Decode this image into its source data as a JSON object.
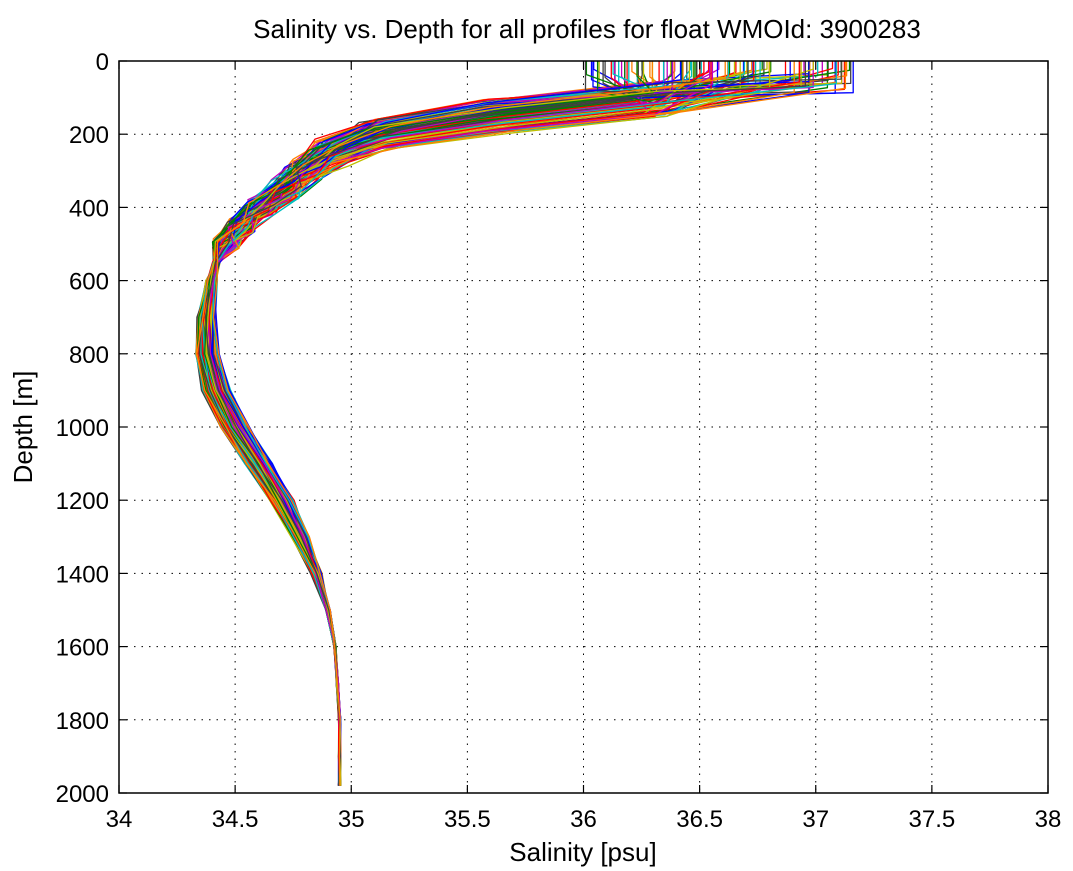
{
  "chart_data": {
    "type": "line",
    "title": "Salinity vs. Depth for all profiles for float WMOId: 3900283",
    "xlabel": "Salinity [psu]",
    "ylabel": "Depth [m]",
    "xlim": [
      34,
      38
    ],
    "ylim": [
      0,
      2000
    ],
    "y_reversed": true,
    "grid": true,
    "grid_style": "dotted",
    "x_ticks": [
      "34",
      "34.5",
      "35",
      "35.5",
      "36",
      "36.5",
      "37",
      "37.5",
      "38"
    ],
    "y_ticks": [
      "0",
      "200",
      "400",
      "600",
      "800",
      "1000",
      "1200",
      "1400",
      "1600",
      "1800",
      "2000"
    ],
    "series_colors": [
      "#0000ff",
      "#008000",
      "#ff0000",
      "#00bfbf",
      "#bf00bf",
      "#bfbf00",
      "#404040",
      "#ff8000"
    ],
    "profile_count": 120,
    "representative_profile": {
      "depth": [
        0,
        60,
        100,
        150,
        200,
        250,
        300,
        350,
        400,
        450,
        500,
        550,
        600,
        700,
        800,
        900,
        1000,
        1100,
        1200,
        1300,
        1400,
        1500,
        1600,
        1700,
        1800,
        1900,
        1980
      ],
      "salinity": [
        36.35,
        36.45,
        36.3,
        35.6,
        35.1,
        34.9,
        34.78,
        34.7,
        34.6,
        34.52,
        34.46,
        34.42,
        34.4,
        34.38,
        34.38,
        34.42,
        34.5,
        34.6,
        34.7,
        34.78,
        34.85,
        34.9,
        34.93,
        34.94,
        34.95,
        34.95,
        34.95
      ]
    }
  }
}
